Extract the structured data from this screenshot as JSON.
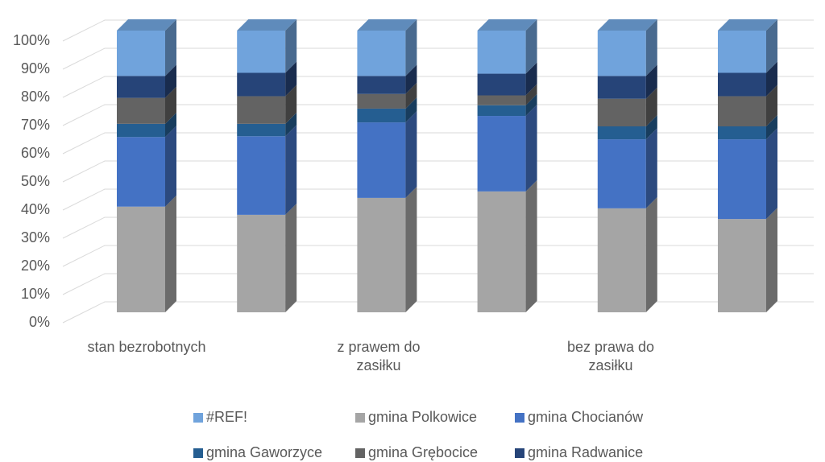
{
  "chart_data": {
    "type": "bar3d-stacked-percent",
    "categories": [
      "stan bezrobotnych",
      null,
      "z prawem do zasiłku",
      null,
      "bez prawa do zasiłku",
      null
    ],
    "series": [
      {
        "name": "#REF!",
        "color": "#70a3dc",
        "values": [
          16.1,
          15.0,
          16.1,
          15.3,
          16.1,
          15.0
        ]
      },
      {
        "name": "gmina Polkowice",
        "color": "#a5a5a5",
        "values": [
          37.5,
          34.6,
          40.6,
          42.9,
          36.9,
          33.1
        ]
      },
      {
        "name": "gmina Chocianów",
        "color": "#4472c4",
        "values": [
          24.7,
          27.9,
          26.8,
          26.8,
          24.5,
          28.3
        ]
      },
      {
        "name": "gmina Gaworzyce",
        "color": "#255e91",
        "values": [
          4.7,
          4.4,
          4.9,
          3.8,
          4.6,
          4.6
        ]
      },
      {
        "name": "gmina Grębocice",
        "color": "#636363",
        "values": [
          9.2,
          9.8,
          5.2,
          3.5,
          9.8,
          10.7
        ]
      },
      {
        "name": "gmina Radwanice",
        "color": "#264478",
        "values": [
          7.8,
          8.3,
          6.4,
          7.7,
          8.1,
          8.3
        ]
      }
    ],
    "ylim": [
      0,
      100
    ],
    "yticks": [
      {
        "value": 0,
        "label": "0%"
      },
      {
        "value": 10,
        "label": "10%"
      },
      {
        "value": 20,
        "label": "20%"
      },
      {
        "value": 30,
        "label": "30%"
      },
      {
        "value": 40,
        "label": "40%"
      },
      {
        "value": 50,
        "label": "50%"
      },
      {
        "value": 60,
        "label": "60%"
      },
      {
        "value": 70,
        "label": "70%"
      },
      {
        "value": 80,
        "label": "80%"
      },
      {
        "value": 90,
        "label": "90%"
      },
      {
        "value": 100,
        "label": "100%"
      }
    ],
    "grid": true
  }
}
